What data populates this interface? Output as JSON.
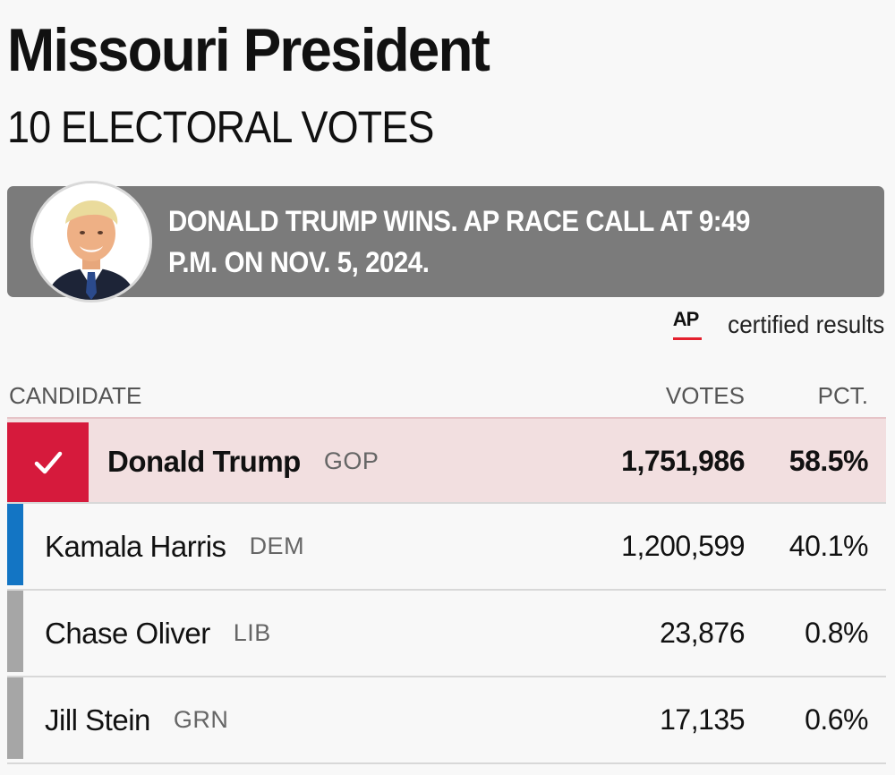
{
  "header": {
    "title": "Missouri President",
    "subtitle": "10 ELECTORAL VOTES"
  },
  "banner": {
    "text": "DONALD TRUMP WINS. AP RACE CALL AT 9:49 P.M. ON NOV. 5, 2024.",
    "photo_icon": "candidate-portrait"
  },
  "source": {
    "logo_text": "AP",
    "label": "certified results"
  },
  "table": {
    "headers": {
      "candidate": "CANDIDATE",
      "votes": "VOTES",
      "pct": "PCT."
    },
    "rows": [
      {
        "name": "Donald Trump",
        "party": "GOP",
        "votes": "1,751,986",
        "pct": "58.5%",
        "winner": true,
        "color": "#d61a3c"
      },
      {
        "name": "Kamala Harris",
        "party": "DEM",
        "votes": "1,200,599",
        "pct": "40.1%",
        "winner": false,
        "color": "#1375c4"
      },
      {
        "name": "Chase Oliver",
        "party": "LIB",
        "votes": "23,876",
        "pct": "0.8%",
        "winner": false,
        "color": "#a6a6a6"
      },
      {
        "name": "Jill Stein",
        "party": "GRN",
        "votes": "17,135",
        "pct": "0.6%",
        "winner": false,
        "color": "#a6a6a6"
      }
    ]
  },
  "colors": {
    "banner_bg": "#7b7b7b",
    "winner_row_bg": "#f2dfe0",
    "gop": "#d61a3c",
    "dem": "#1375c4",
    "other": "#a6a6a6"
  }
}
